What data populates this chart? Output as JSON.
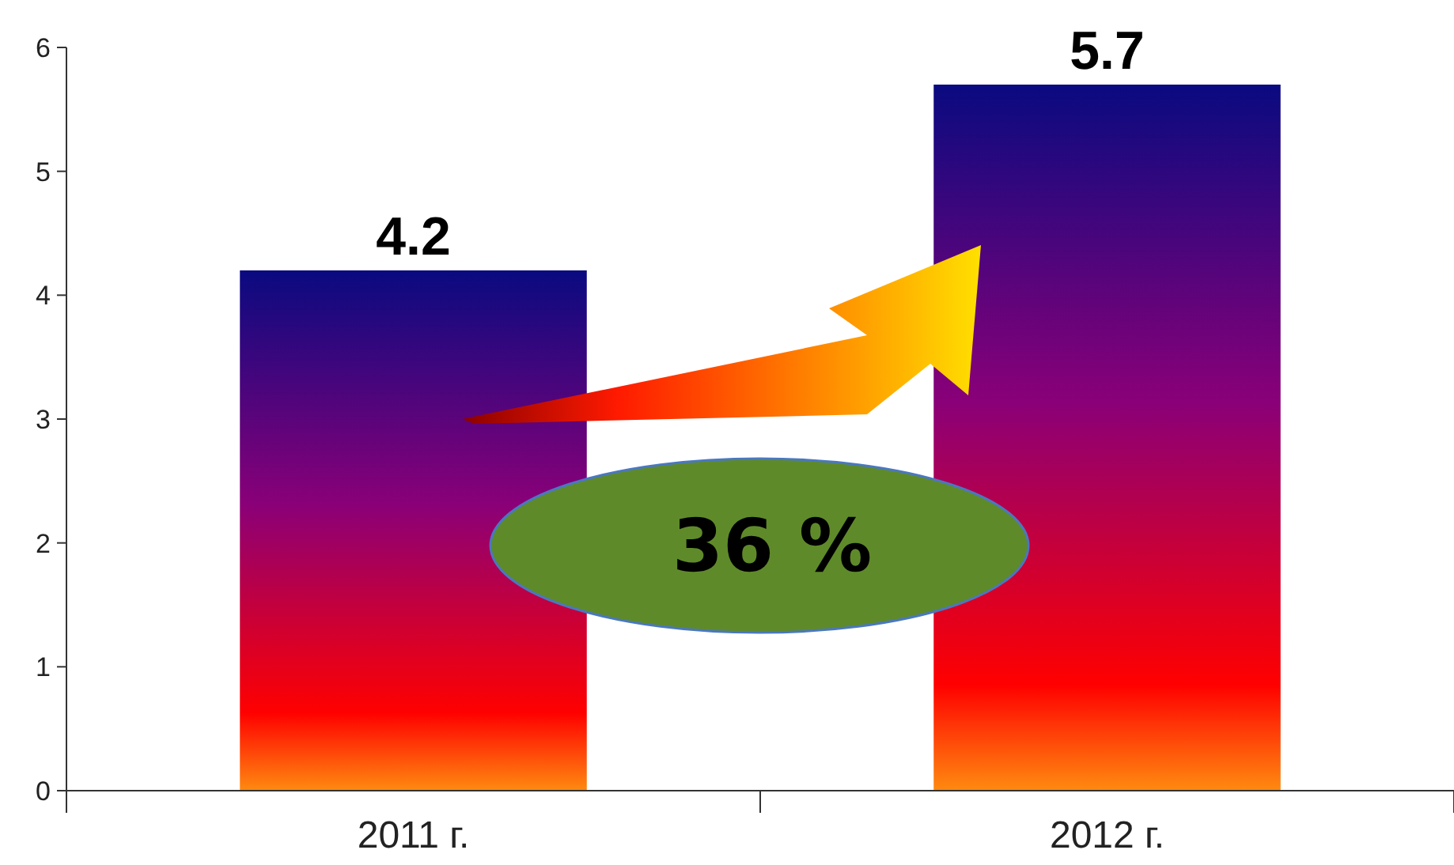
{
  "chart_data": {
    "type": "bar",
    "categories": [
      "2011 г.",
      "2012 г."
    ],
    "series": [
      {
        "color": "#8a0078",
        "values": [
          4.2,
          5.7
        ]
      }
    ],
    "ylim": [
      0,
      6
    ],
    "yticks": [
      0,
      1,
      2,
      3,
      4,
      5,
      6
    ],
    "data_labels": true,
    "annotations": [
      "36 %"
    ]
  }
}
